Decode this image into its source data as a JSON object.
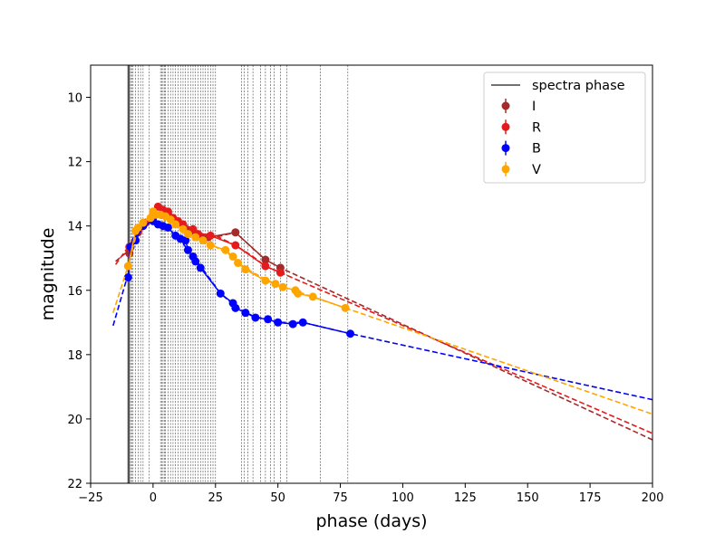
{
  "chart_data": {
    "type": "line",
    "title": "",
    "xlabel": "phase (days)",
    "ylabel": "magnitude",
    "xlim": [
      -25,
      200
    ],
    "ylim": [
      22,
      9
    ],
    "y_inverted": true,
    "grid": false,
    "legend_position": "top-right",
    "x_ticks": [
      -25,
      0,
      25,
      50,
      75,
      100,
      125,
      150,
      175,
      200
    ],
    "y_ticks": [
      10,
      12,
      14,
      16,
      18,
      20,
      22
    ],
    "spectra_phase": {
      "label": "spectra phase",
      "color": "#444444",
      "solid": [
        -10,
        -9.5
      ],
      "dotted": [
        -9,
        -8.5,
        -8,
        -7,
        -6,
        -5,
        -4,
        -1.5,
        3,
        3.5,
        4,
        4.5,
        5,
        6,
        7,
        8,
        9,
        10,
        11,
        12,
        13,
        14,
        15,
        16,
        17,
        18,
        19,
        20,
        21,
        22,
        23,
        24,
        25,
        35.5,
        36.5,
        38,
        40,
        43,
        45,
        47,
        48.5,
        51,
        53.5,
        67,
        78
      ]
    },
    "series": [
      {
        "name": "I",
        "color": "#a52a2a",
        "points": [
          [
            -9.5,
            14.85
          ],
          [
            -6,
            14.2
          ],
          [
            -3,
            13.9
          ],
          [
            0,
            13.75
          ],
          [
            3,
            13.65
          ],
          [
            6,
            13.6
          ],
          [
            8,
            13.8
          ],
          [
            10,
            13.9
          ],
          [
            12,
            14.0
          ],
          [
            15,
            14.15
          ],
          [
            18,
            14.3
          ],
          [
            22,
            14.35
          ],
          [
            33,
            14.2
          ],
          [
            45,
            15.05
          ],
          [
            51,
            15.3
          ]
        ],
        "fit": [
          [
            -15,
            15.1
          ],
          [
            -9.5,
            14.75
          ],
          [
            -5,
            14.1
          ],
          [
            0,
            13.7
          ],
          [
            5,
            13.6
          ],
          [
            10,
            13.85
          ],
          [
            15,
            14.1
          ],
          [
            20,
            14.3
          ],
          [
            25,
            14.35
          ],
          [
            33,
            14.2
          ],
          [
            40,
            14.7
          ],
          [
            45,
            15.05
          ],
          [
            51,
            15.3
          ],
          [
            200,
            20.65
          ]
        ]
      },
      {
        "name": "R",
        "color": "#e41a1c",
        "points": [
          [
            -9.5,
            14.65
          ],
          [
            -6,
            14.15
          ],
          [
            -3,
            13.9
          ],
          [
            0,
            13.65
          ],
          [
            2,
            13.4
          ],
          [
            4,
            13.5
          ],
          [
            6,
            13.55
          ],
          [
            8,
            13.75
          ],
          [
            10,
            13.85
          ],
          [
            12,
            13.95
          ],
          [
            16,
            14.1
          ],
          [
            18,
            14.25
          ],
          [
            23,
            14.3
          ],
          [
            33,
            14.6
          ],
          [
            45,
            15.25
          ],
          [
            51,
            15.45
          ]
        ],
        "fit": [
          [
            -15,
            15.2
          ],
          [
            -9.5,
            14.6
          ],
          [
            -5,
            14.05
          ],
          [
            0,
            13.6
          ],
          [
            2,
            13.4
          ],
          [
            5,
            13.5
          ],
          [
            10,
            13.85
          ],
          [
            15,
            14.05
          ],
          [
            20,
            14.25
          ],
          [
            25,
            14.3
          ],
          [
            33,
            14.6
          ],
          [
            40,
            14.95
          ],
          [
            45,
            15.25
          ],
          [
            51,
            15.45
          ],
          [
            200,
            20.45
          ]
        ]
      },
      {
        "name": "B",
        "color": "#0000ff",
        "points": [
          [
            -10,
            15.6
          ],
          [
            -9,
            14.65
          ],
          [
            -7,
            14.45
          ],
          [
            -4,
            14.0
          ],
          [
            0,
            13.85
          ],
          [
            2,
            13.95
          ],
          [
            4,
            14.0
          ],
          [
            6,
            14.05
          ],
          [
            9,
            14.3
          ],
          [
            11,
            14.4
          ],
          [
            13,
            14.45
          ],
          [
            14,
            14.75
          ],
          [
            16,
            14.95
          ],
          [
            17,
            15.1
          ],
          [
            19,
            15.3
          ],
          [
            27,
            16.1
          ],
          [
            32,
            16.4
          ],
          [
            33,
            16.55
          ],
          [
            37,
            16.7
          ],
          [
            41,
            16.85
          ],
          [
            46,
            16.9
          ],
          [
            50,
            17.0
          ],
          [
            56,
            17.05
          ],
          [
            60,
            17.0
          ],
          [
            79,
            17.35
          ]
        ],
        "fit": [
          [
            -16,
            17.1
          ],
          [
            -10,
            15.5
          ],
          [
            -9,
            14.65
          ],
          [
            -5,
            14.05
          ],
          [
            0,
            13.85
          ],
          [
            5,
            14.05
          ],
          [
            10,
            14.35
          ],
          [
            15,
            14.85
          ],
          [
            20,
            15.35
          ],
          [
            27,
            16.1
          ],
          [
            33,
            16.5
          ],
          [
            40,
            16.8
          ],
          [
            50,
            17.0
          ],
          [
            60,
            17.0
          ],
          [
            79,
            17.35
          ],
          [
            200,
            19.4
          ]
        ]
      },
      {
        "name": "V",
        "color": "#ffa500",
        "points": [
          [
            -10,
            15.25
          ],
          [
            -7,
            14.15
          ],
          [
            -6,
            14.05
          ],
          [
            -4,
            13.9
          ],
          [
            -1,
            13.75
          ],
          [
            0,
            13.55
          ],
          [
            1,
            13.65
          ],
          [
            3,
            13.65
          ],
          [
            5,
            13.7
          ],
          [
            7,
            13.8
          ],
          [
            9,
            13.95
          ],
          [
            12,
            14.1
          ],
          [
            14,
            14.25
          ],
          [
            17,
            14.35
          ],
          [
            20,
            14.45
          ],
          [
            23,
            14.6
          ],
          [
            29,
            14.75
          ],
          [
            32,
            14.95
          ],
          [
            34,
            15.15
          ],
          [
            37,
            15.35
          ],
          [
            45,
            15.7
          ],
          [
            49,
            15.8
          ],
          [
            52,
            15.9
          ],
          [
            57,
            16.0
          ],
          [
            58,
            16.1
          ],
          [
            64,
            16.2
          ],
          [
            77,
            16.55
          ]
        ],
        "fit": [
          [
            -16,
            16.7
          ],
          [
            -10,
            15.25
          ],
          [
            -6,
            14.05
          ],
          [
            0,
            13.6
          ],
          [
            5,
            13.7
          ],
          [
            10,
            14.0
          ],
          [
            15,
            14.25
          ],
          [
            20,
            14.45
          ],
          [
            25,
            14.65
          ],
          [
            30,
            14.85
          ],
          [
            35,
            15.2
          ],
          [
            40,
            15.45
          ],
          [
            50,
            15.85
          ],
          [
            60,
            16.1
          ],
          [
            77,
            16.55
          ],
          [
            200,
            19.85
          ]
        ]
      }
    ]
  }
}
